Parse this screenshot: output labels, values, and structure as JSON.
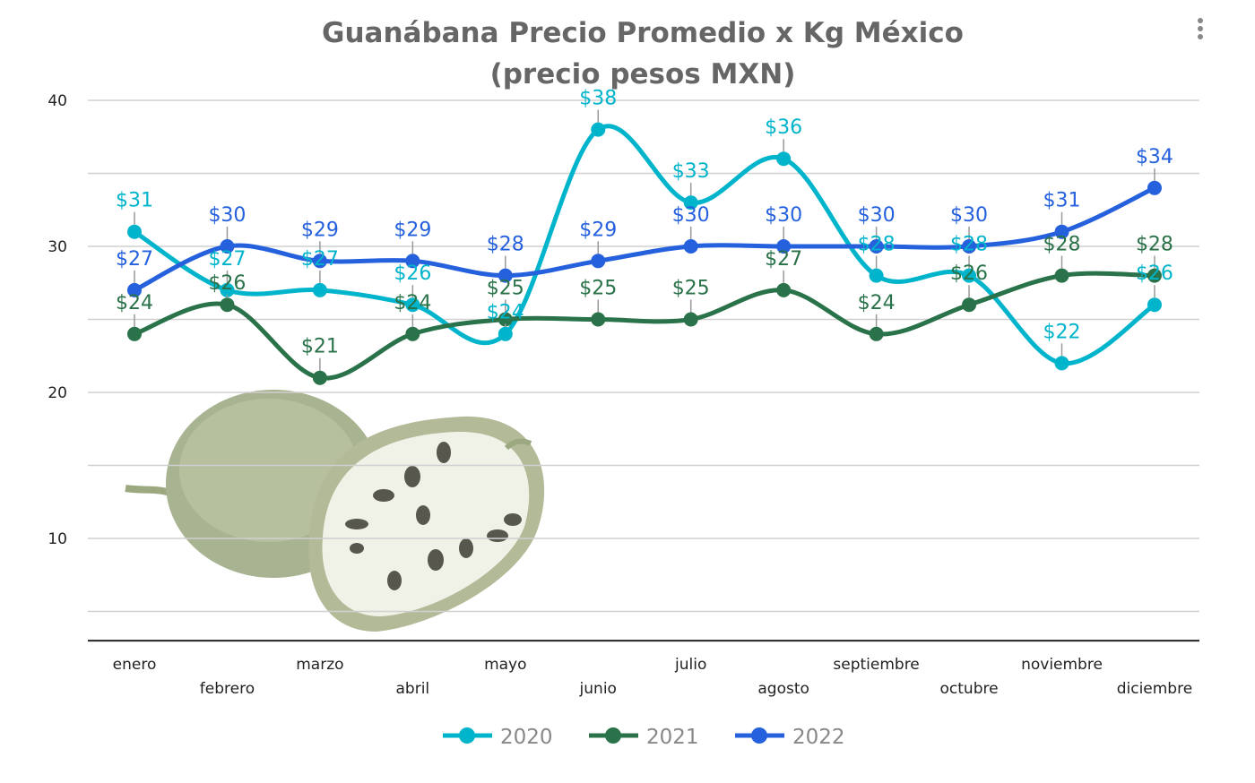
{
  "chart_data": {
    "type": "line",
    "title": "Guanábana Precio Promedio x Kg México",
    "subtitle": "(precio pesos MXN)",
    "categories": [
      "enero",
      "febrero",
      "marzo",
      "abril",
      "mayo",
      "junio",
      "julio",
      "agosto",
      "septiembre",
      "octubre",
      "noviembre",
      "diciembre"
    ],
    "series": [
      {
        "name": "2020",
        "color": "#00b4cb",
        "values": [
          31,
          27,
          27,
          26,
          24,
          38,
          33,
          36,
          28,
          28,
          22,
          26
        ]
      },
      {
        "name": "2021",
        "color": "#2a7249",
        "values": [
          24,
          26,
          21,
          24,
          25,
          25,
          25,
          27,
          24,
          26,
          28,
          28
        ]
      },
      {
        "name": "2022",
        "color": "#2560dd",
        "values": [
          27,
          30,
          29,
          29,
          28,
          29,
          30,
          30,
          30,
          30,
          31,
          34
        ]
      }
    ],
    "value_prefix": "$",
    "yticks": [
      10,
      20,
      30,
      40
    ],
    "ylim": [
      3,
      40
    ],
    "grid": true,
    "smooth": true,
    "legend": "bottom",
    "background_image": "soursop-fruit-picture"
  },
  "menu_icon": "more-vertical-icon"
}
